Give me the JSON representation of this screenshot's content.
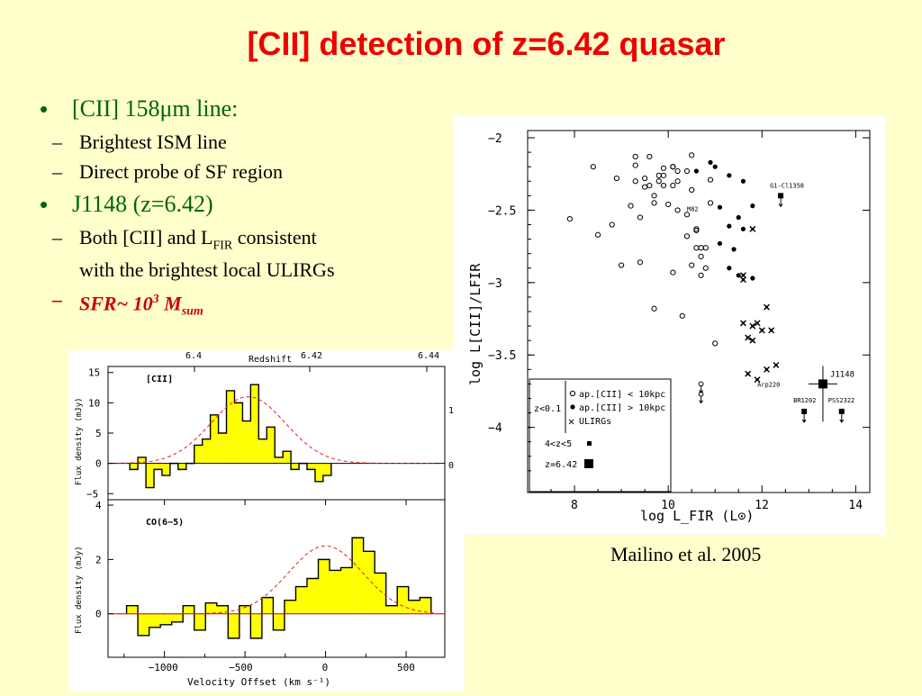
{
  "title": "[CII] detection of z=6.42 quasar",
  "bullets": [
    {
      "text": "[CII] 158μm line:",
      "sub": [
        "Brightest ISM line",
        "Direct probe of SF region"
      ]
    },
    {
      "text": "J1148 (z=6.42)"
    }
  ],
  "sub2": {
    "line1a": "Both [CII] and L",
    "line1sub": "FIR",
    "line1b": " consistent",
    "line2": "with the brightest local ULIRGs"
  },
  "sfr": {
    "a": "SFR~ 10",
    "sup": "3",
    "b": " M",
    "sub": "sum"
  },
  "citation": "Mailino et al.  2005",
  "chart_data": [
    {
      "type": "scatter",
      "xlabel": "log L_FIR (L⊙)",
      "ylabel": "log L[CII]/LFIR",
      "xlim": [
        7,
        14.3
      ],
      "ylim": [
        -4.45,
        -1.95
      ],
      "xticks": [
        "8",
        "10",
        "12",
        "14"
      ],
      "yticks": [
        "−2",
        "−2.5",
        "−3",
        "−3.5",
        "−4"
      ],
      "legend": {
        "z_low": "z<0.1",
        "open": "ap.[CII] < 10kpc",
        "filled": "ap.[CII] > 10kpc",
        "ulirg": "ULIRGs",
        "midz": "4<z<5",
        "z642": "z=6.42"
      },
      "labels": {
        "g1": "G1-Cl1358",
        "m82": "M82",
        "arp": "Arp220",
        "br": "BR1202",
        "pss": "PSS2322",
        "j1148": "J1148"
      },
      "open": [
        [
          7.9,
          -2.56
        ],
        [
          8.5,
          -2.67
        ],
        [
          8.4,
          -2.2
        ],
        [
          8.9,
          -2.28
        ],
        [
          9,
          -2.88
        ],
        [
          8.8,
          -2.6
        ],
        [
          9.3,
          -2.19
        ],
        [
          9.4,
          -2.86
        ],
        [
          9.2,
          -2.47
        ],
        [
          9.3,
          -2.3
        ],
        [
          9.6,
          -2.13
        ],
        [
          9.5,
          -2.34
        ],
        [
          9.8,
          -2.26
        ],
        [
          9.8,
          -2.3
        ],
        [
          9.7,
          -2.45
        ],
        [
          9.9,
          -2.21
        ],
        [
          9.9,
          -2.33
        ],
        [
          10,
          -2.46
        ],
        [
          10.1,
          -2.2
        ],
        [
          10.2,
          -2.3
        ],
        [
          10.4,
          -2.53
        ],
        [
          10.6,
          -2.63
        ],
        [
          10.7,
          -2.82
        ],
        [
          10.9,
          -2.45
        ],
        [
          10.8,
          -2.76
        ],
        [
          10.4,
          -2.68
        ],
        [
          10.2,
          -2.5
        ],
        [
          10.5,
          -2.36
        ],
        [
          10.3,
          -3.23
        ],
        [
          10.1,
          -2.93
        ],
        [
          9.7,
          -3.18
        ],
        [
          11,
          -3.42
        ],
        [
          9.4,
          -2.55
        ],
        [
          10.6,
          -2.64
        ],
        [
          9.9,
          -2.26
        ],
        [
          10.1,
          -2.2
        ],
        [
          9.5,
          -2.28
        ],
        [
          10.6,
          -2.76
        ],
        [
          9.3,
          -2.13
        ],
        [
          10.2,
          -2.23
        ],
        [
          10.7,
          -2.95
        ],
        [
          10.8,
          -2.9
        ],
        [
          9.6,
          -2.33
        ],
        [
          10.7,
          -2.76
        ],
        [
          10.1,
          -2.33
        ],
        [
          9.7,
          -2.4
        ],
        [
          10.4,
          -2.23
        ],
        [
          10.5,
          -2.12
        ],
        [
          10.9,
          -2.29
        ],
        [
          10.5,
          -2.88
        ]
      ],
      "filled": [
        [
          10.6,
          -2.23
        ],
        [
          10.9,
          -2.17
        ],
        [
          11,
          -2.2
        ],
        [
          11.3,
          -2.26
        ],
        [
          11.6,
          -2.3
        ],
        [
          11.1,
          -2.48
        ],
        [
          11.5,
          -2.55
        ],
        [
          11.3,
          -2.61
        ],
        [
          11.4,
          -2.77
        ],
        [
          11.8,
          -2.47
        ],
        [
          11.1,
          -2.73
        ],
        [
          11.6,
          -2.63
        ],
        [
          11.3,
          -2.9
        ],
        [
          11.8,
          -2.97
        ],
        [
          11.5,
          -2.95
        ]
      ],
      "ulirg": [
        [
          11.8,
          -2.63
        ],
        [
          11.6,
          -2.95
        ],
        [
          11.6,
          -2.98
        ],
        [
          11.8,
          -3.3
        ],
        [
          11.7,
          -3.38
        ],
        [
          11.9,
          -3.28
        ],
        [
          11.8,
          -3.4
        ],
        [
          12,
          -3.33
        ],
        [
          12.1,
          -3.17
        ],
        [
          12.3,
          -3.57
        ],
        [
          12.1,
          -3.6
        ],
        [
          11.7,
          -3.63
        ],
        [
          11.9,
          -3.67
        ],
        [
          12.2,
          -3.33
        ],
        [
          11.6,
          -3.28
        ]
      ],
      "uplims": [
        [
          10.7,
          -3.7
        ],
        [
          10.7,
          -3.77
        ]
      ],
      "mid": [
        [
          12.4,
          -2.4
        ],
        [
          12.9,
          -3.89
        ],
        [
          13.7,
          -3.89
        ]
      ],
      "j1148": [
        13.3,
        -3.7
      ]
    },
    {
      "type": "line",
      "title": "[CII]",
      "ylabel": "Flux density (mJy)",
      "xlim": [
        -1350,
        740
      ],
      "ylim": [
        -6,
        16
      ],
      "yticks": [
        "15",
        "10",
        "5",
        "0",
        "−5"
      ],
      "right_ticks": [
        "1",
        "0"
      ],
      "top_axis": {
        "label": "Redshift",
        "ticks": [
          "6.4",
          "6.42",
          "6.44"
        ]
      },
      "steps": [
        [
          -1190,
          -1
        ],
        [
          -1140,
          1
        ],
        [
          -1090,
          -4
        ],
        [
          -1040,
          -1
        ],
        [
          -990,
          -2
        ],
        [
          -940,
          0
        ],
        [
          -890,
          -1
        ],
        [
          -840,
          0
        ],
        [
          -790,
          3
        ],
        [
          -740,
          4
        ],
        [
          -690,
          8
        ],
        [
          -640,
          5
        ],
        [
          -590,
          12
        ],
        [
          -540,
          10
        ],
        [
          -490,
          7
        ],
        [
          -440,
          13
        ],
        [
          -390,
          4
        ],
        [
          -340,
          6
        ],
        [
          -290,
          1
        ],
        [
          -240,
          2
        ],
        [
          -190,
          -1
        ],
        [
          -140,
          0
        ],
        [
          -90,
          -1
        ],
        [
          -40,
          -3
        ],
        [
          10,
          -2
        ]
      ]
    },
    {
      "type": "line",
      "title": "CO(6−5)",
      "ylabel": "Flux density (mJy)",
      "xlabel": "Velocity Offset (km s⁻¹)",
      "xlim": [
        -1350,
        740
      ],
      "ylim": [
        -1.6,
        4.2
      ],
      "xticks": [
        "−1000",
        "−500",
        "0",
        "500"
      ],
      "yticks": [
        "4",
        "2",
        "0"
      ],
      "steps": [
        [
          -1200,
          0.3
        ],
        [
          -1130,
          -0.8
        ],
        [
          -1060,
          -0.5
        ],
        [
          -990,
          -0.4
        ],
        [
          -920,
          -0.3
        ],
        [
          -850,
          0.3
        ],
        [
          -780,
          -0.6
        ],
        [
          -710,
          0.4
        ],
        [
          -640,
          0.3
        ],
        [
          -570,
          -0.9
        ],
        [
          -500,
          0.3
        ],
        [
          -430,
          -0.9
        ],
        [
          -360,
          0.6
        ],
        [
          -290,
          -0.6
        ],
        [
          -220,
          0.5
        ],
        [
          -150,
          1.0
        ],
        [
          -80,
          1.3
        ],
        [
          -10,
          2.0
        ],
        [
          60,
          1.6
        ],
        [
          130,
          1.7
        ],
        [
          200,
          2.8
        ],
        [
          270,
          2.3
        ],
        [
          340,
          1.5
        ],
        [
          410,
          0.3
        ],
        [
          480,
          1.0
        ],
        [
          550,
          0.5
        ],
        [
          620,
          0.6
        ]
      ]
    }
  ]
}
